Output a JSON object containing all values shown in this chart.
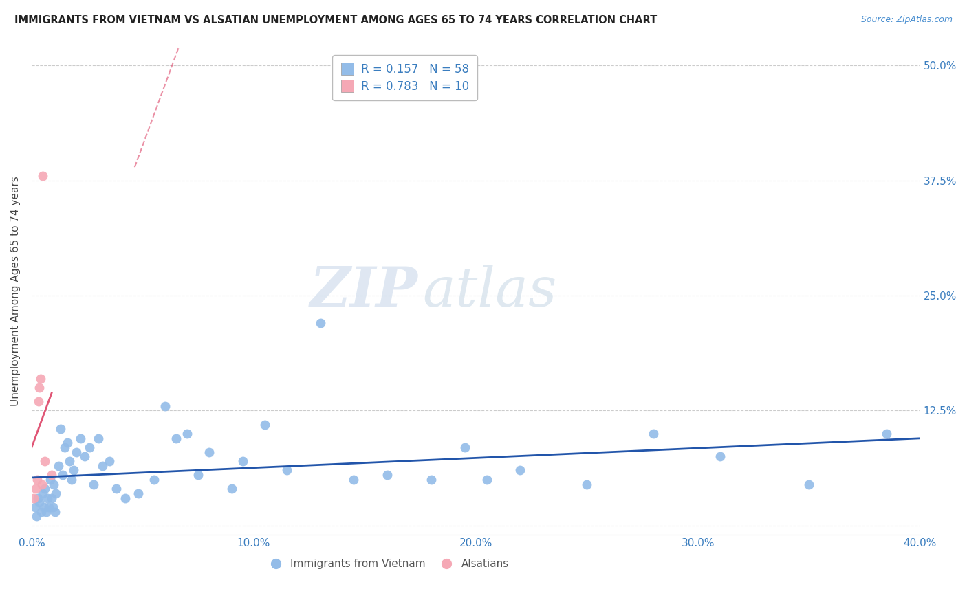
{
  "title": "IMMIGRANTS FROM VIETNAM VS ALSATIAN UNEMPLOYMENT AMONG AGES 65 TO 74 YEARS CORRELATION CHART",
  "source": "Source: ZipAtlas.com",
  "ylabel": "Unemployment Among Ages 65 to 74 years",
  "xlabel_vals": [
    0.0,
    10.0,
    20.0,
    30.0,
    40.0
  ],
  "ylabel_vals": [
    0.0,
    12.5,
    25.0,
    37.5,
    50.0
  ],
  "xlim": [
    0.0,
    40.0
  ],
  "ylim": [
    -1.0,
    52.0
  ],
  "blue_R": 0.157,
  "blue_N": 58,
  "pink_R": 0.783,
  "pink_N": 10,
  "blue_color": "#93BCE8",
  "pink_color": "#F5A8B5",
  "blue_line_color": "#2255AA",
  "pink_line_color": "#E05575",
  "watermark_zip": "ZIP",
  "watermark_atlas": "atlas",
  "blue_x": [
    0.15,
    0.22,
    0.28,
    0.35,
    0.42,
    0.5,
    0.55,
    0.6,
    0.65,
    0.7,
    0.78,
    0.85,
    0.9,
    0.95,
    1.0,
    1.05,
    1.1,
    1.2,
    1.3,
    1.4,
    1.5,
    1.6,
    1.7,
    1.8,
    1.9,
    2.0,
    2.2,
    2.4,
    2.6,
    2.8,
    3.0,
    3.2,
    3.5,
    3.8,
    4.2,
    4.8,
    5.5,
    6.0,
    6.5,
    7.0,
    7.5,
    8.0,
    9.0,
    9.5,
    10.5,
    11.5,
    13.0,
    14.5,
    16.0,
    18.0,
    19.5,
    20.5,
    22.0,
    25.0,
    28.0,
    31.0,
    35.0,
    38.5
  ],
  "blue_y": [
    2.0,
    1.0,
    3.0,
    2.5,
    1.5,
    3.5,
    2.0,
    4.0,
    1.5,
    3.0,
    2.0,
    5.0,
    3.0,
    2.0,
    4.5,
    1.5,
    3.5,
    6.5,
    10.5,
    5.5,
    8.5,
    9.0,
    7.0,
    5.0,
    6.0,
    8.0,
    9.5,
    7.5,
    8.5,
    4.5,
    9.5,
    6.5,
    7.0,
    4.0,
    3.0,
    3.5,
    5.0,
    13.0,
    9.5,
    10.0,
    5.5,
    8.0,
    4.0,
    7.0,
    11.0,
    6.0,
    22.0,
    5.0,
    5.5,
    5.0,
    8.5,
    5.0,
    6.0,
    4.5,
    10.0,
    7.5,
    4.5,
    10.0
  ],
  "pink_x": [
    0.1,
    0.2,
    0.25,
    0.3,
    0.35,
    0.4,
    0.45,
    0.5,
    0.6,
    0.9
  ],
  "pink_y": [
    3.0,
    4.0,
    5.0,
    13.5,
    15.0,
    16.0,
    4.5,
    38.0,
    7.0,
    5.5
  ]
}
